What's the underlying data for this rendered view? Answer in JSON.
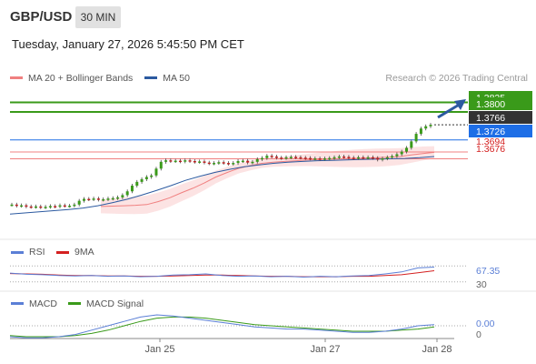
{
  "header": {
    "symbol": "GBP/USD",
    "interval": "30 MIN",
    "datetime": "Tuesday, January 27, 2026 5:45:50 PM CET"
  },
  "legend": {
    "items": [
      {
        "label": "MA 20 + Bollinger Bands",
        "color": "#f08080"
      },
      {
        "label": "MA 50",
        "color": "#2c5aa0"
      }
    ],
    "credit": "Research © 2026 Trading Central"
  },
  "rsi_legend": [
    {
      "label": "RSI",
      "color": "#5b7fd6"
    },
    {
      "label": "9MA",
      "color": "#d42020"
    }
  ],
  "macd_legend": [
    {
      "label": "MACD",
      "color": "#5b7fd6"
    },
    {
      "label": "MACD Signal",
      "color": "#3a9a1a"
    }
  ],
  "price_labels": [
    {
      "value": "1.3825",
      "bg": "#3a9a1a",
      "fg": "#ffffff"
    },
    {
      "value": "1.3800",
      "bg": "#3a9a1a",
      "fg": "#ffffff"
    },
    {
      "value": "1.3766",
      "bg": "#333333",
      "fg": "#ffffff"
    },
    {
      "value": "1.3726",
      "bg": "#1e6ee6",
      "fg": "#ffffff"
    },
    {
      "value": "1.3694",
      "bg": "none",
      "fg": "#d42020"
    },
    {
      "value": "1.3676",
      "bg": "none",
      "fg": "#d42020"
    }
  ],
  "rsi_labels": [
    "67.35",
    "30"
  ],
  "macd_labels": [
    "0.00",
    "0"
  ],
  "x_labels": [
    "Jan 25",
    "Jan 27",
    "Jan 28"
  ],
  "chart_data": {
    "type": "line",
    "title": "GBP/USD",
    "series": [
      {
        "name": "GBP/USD",
        "values": [
          1.3555,
          1.3552,
          1.3553,
          1.355,
          1.3549,
          1.355,
          1.3548,
          1.3549,
          1.3551,
          1.355,
          1.3553,
          1.3552,
          1.3552,
          1.3555,
          1.3565,
          1.357,
          1.3569,
          1.3571,
          1.3568,
          1.3569,
          1.3571,
          1.3572,
          1.3574,
          1.358,
          1.359,
          1.3605,
          1.3615,
          1.3622,
          1.3628,
          1.3632,
          1.365,
          1.3668,
          1.3672,
          1.367,
          1.3671,
          1.3669,
          1.3672,
          1.367,
          1.3668,
          1.3669,
          1.3666,
          1.3664,
          1.3665,
          1.3667,
          1.3665,
          1.3663,
          1.3665,
          1.367,
          1.3671,
          1.3666,
          1.3668,
          1.3675,
          1.3678,
          1.3684,
          1.3682,
          1.3679,
          1.3678,
          1.368,
          1.3681,
          1.368,
          1.3679,
          1.3678,
          1.3677,
          1.3677,
          1.3676,
          1.3677,
          1.3678,
          1.368,
          1.3682,
          1.3681,
          1.3679,
          1.3678,
          1.368,
          1.3679,
          1.368,
          1.3678,
          1.3674,
          1.3677,
          1.368,
          1.3683,
          1.3688,
          1.3695,
          1.3705,
          1.3722,
          1.3742,
          1.3756,
          1.3762,
          1.3766
        ]
      },
      {
        "name": "MA 20",
        "values": [
          1.355,
          1.3551,
          1.3552,
          1.3553,
          1.3555,
          1.3563,
          1.3573,
          1.3586,
          1.3598,
          1.3612,
          1.3628,
          1.364,
          1.3651,
          1.3658,
          1.3664,
          1.3667,
          1.3669,
          1.3671,
          1.3673,
          1.3674,
          1.3675,
          1.3676,
          1.3677,
          1.3678,
          1.3679,
          1.368,
          1.3682,
          1.3686,
          1.369,
          1.3693
        ]
      },
      {
        "name": "MA 50",
        "values": [
          1.353,
          1.3533,
          1.3536,
          1.3539,
          1.3542,
          1.3546,
          1.3552,
          1.356,
          1.3569,
          1.358,
          1.3592,
          1.3605,
          1.3619,
          1.363,
          1.364,
          1.3648,
          1.3655,
          1.366,
          1.3664,
          1.3667,
          1.3669,
          1.3671,
          1.3672,
          1.3673,
          1.3674,
          1.3675,
          1.3676,
          1.3677,
          1.3679,
          1.3682
        ]
      },
      {
        "name": "RSI",
        "values": [
          52,
          49,
          48,
          46,
          45,
          46,
          44,
          45,
          43,
          44,
          47,
          48,
          50,
          46,
          44,
          45,
          43,
          44,
          42,
          44,
          43,
          45,
          46,
          50,
          55,
          65,
          67
        ]
      },
      {
        "name": "9MA",
        "values": [
          51,
          50,
          49,
          47,
          46,
          46,
          45,
          45,
          44,
          44,
          45,
          46,
          47,
          47,
          46,
          45,
          44,
          44,
          43,
          43,
          43,
          44,
          44,
          46,
          48,
          53,
          58
        ]
      },
      {
        "name": "MACD",
        "values": [
          -0.001,
          -0.0011,
          -0.0011,
          -0.001,
          -0.0008,
          -0.0004,
          0.0,
          0.0004,
          0.0008,
          0.001,
          0.0009,
          0.0007,
          0.0005,
          0.0003,
          0.0001,
          -0.0001,
          -0.0002,
          -0.0003,
          -0.0003,
          -0.0004,
          -0.0005,
          -0.0006,
          -0.0006,
          -0.0005,
          -0.0003,
          0.0,
          0.0001
        ]
      },
      {
        "name": "MACD Signal",
        "values": [
          -0.0009,
          -0.001,
          -0.001,
          -0.001,
          -0.0009,
          -0.0007,
          -0.0004,
          0.0,
          0.0004,
          0.0007,
          0.0008,
          0.0008,
          0.0007,
          0.0005,
          0.0003,
          0.0001,
          0.0,
          -0.0001,
          -0.0002,
          -0.0003,
          -0.0004,
          -0.0005,
          -0.0005,
          -0.0005,
          -0.0004,
          -0.0003,
          -0.0001
        ]
      }
    ],
    "levels": [
      1.3825,
      1.38,
      1.3726,
      1.3694,
      1.3676
    ],
    "last_price": 1.3766,
    "ylim": [
      1.348,
      1.386
    ],
    "rsi_levels": [
      70,
      30
    ],
    "xlabel": "",
    "ylabel": ""
  }
}
